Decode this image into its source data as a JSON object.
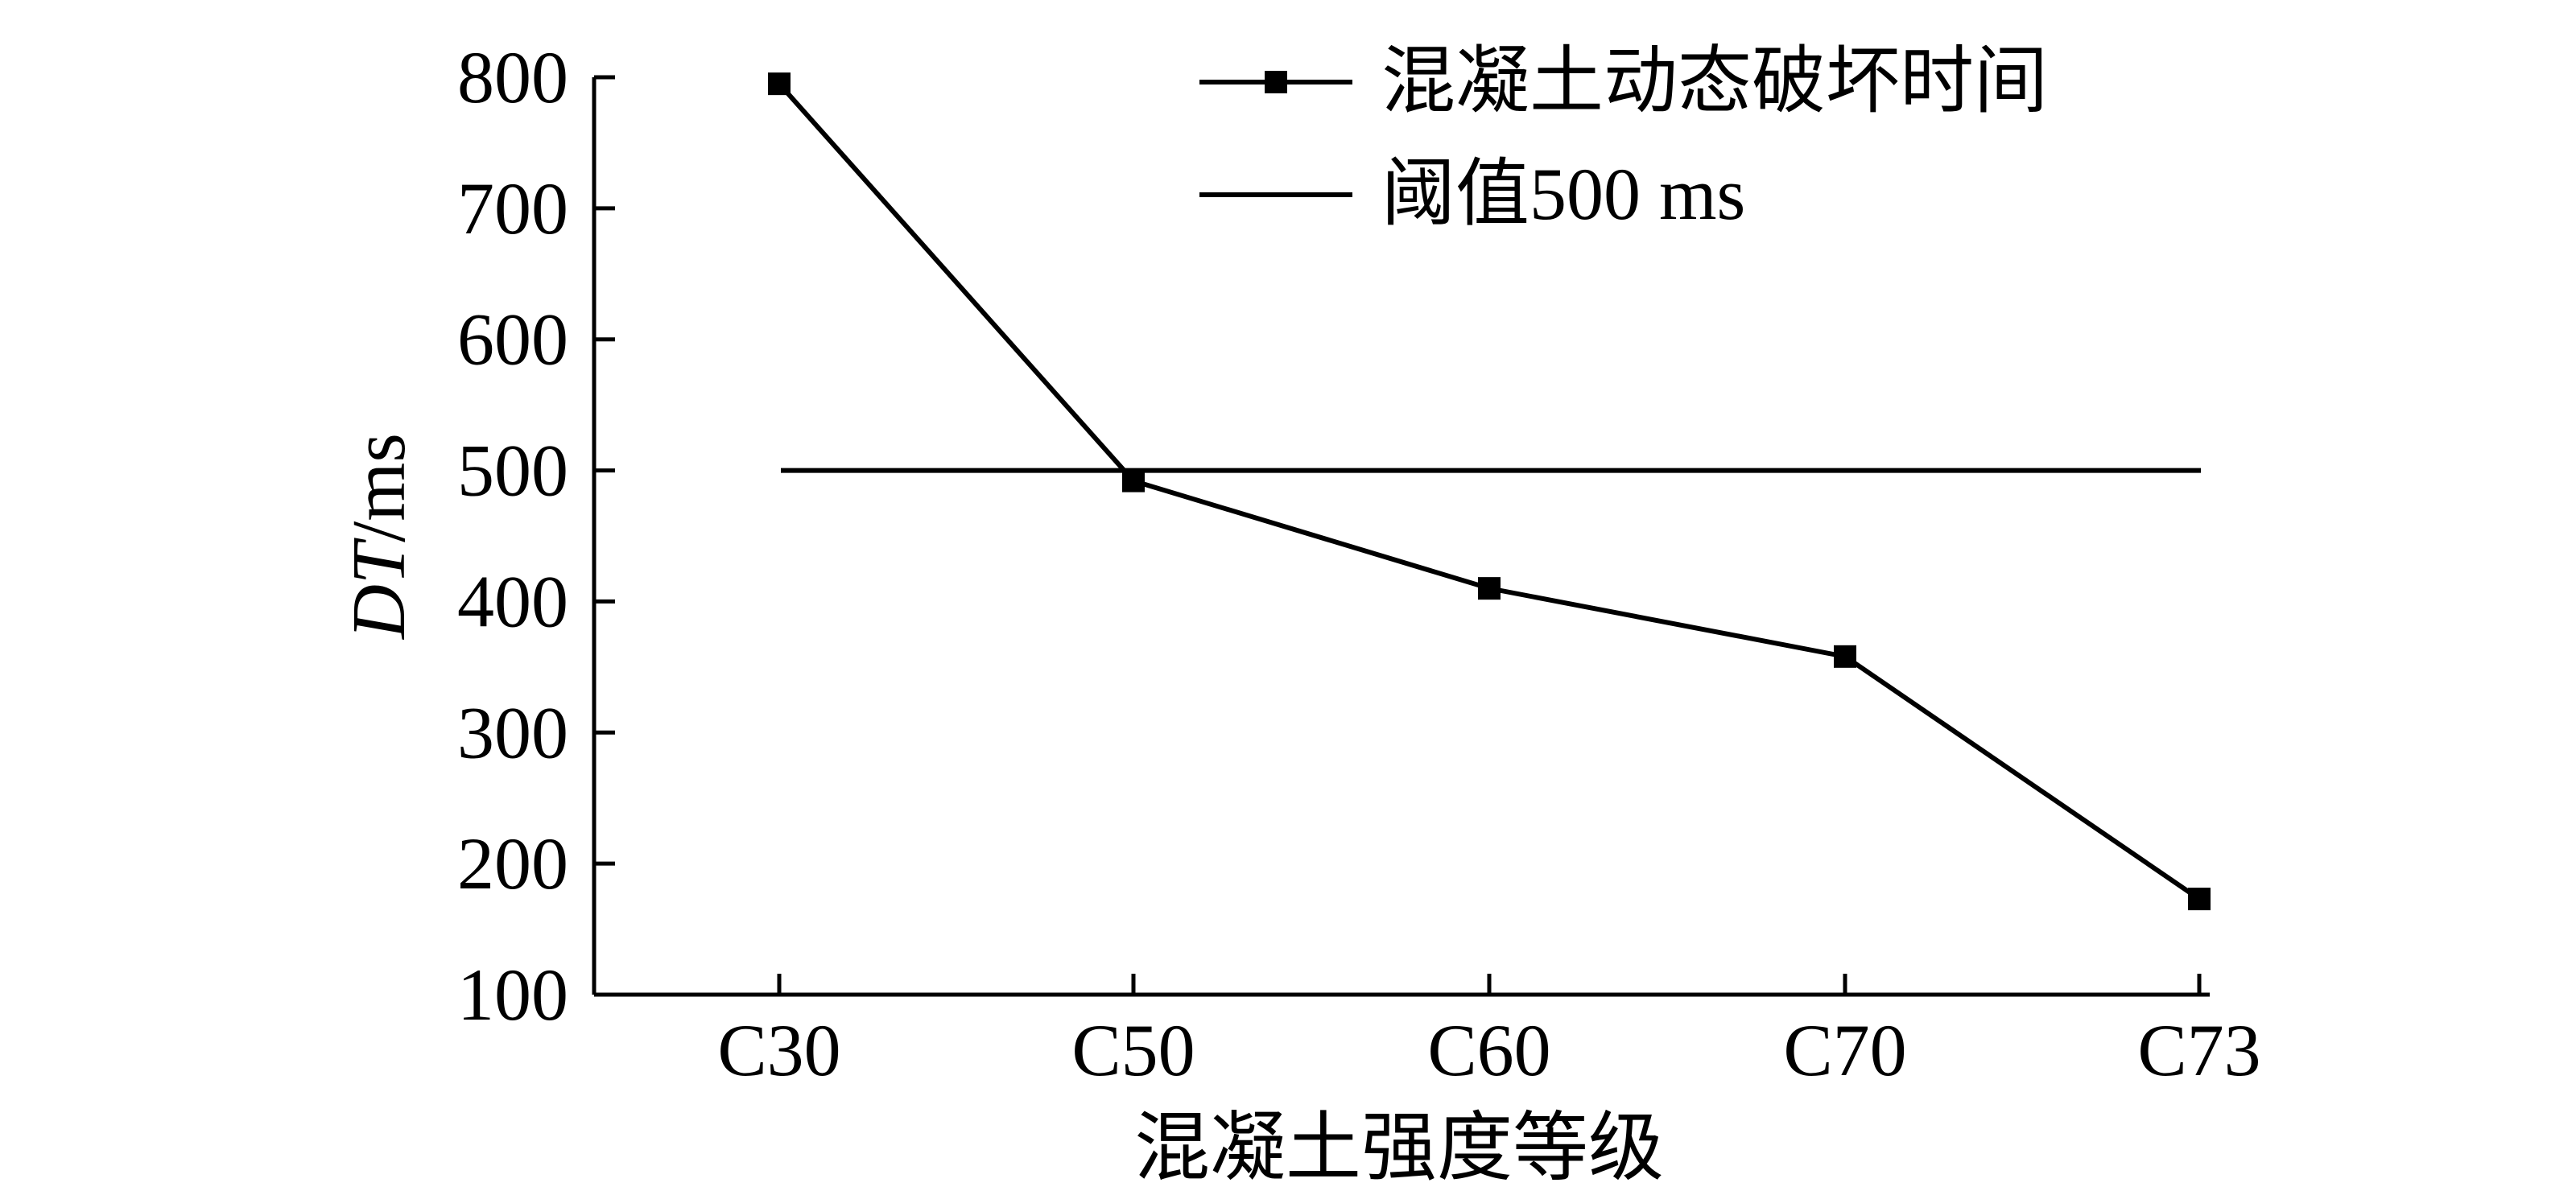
{
  "chart_data": {
    "type": "line",
    "categories": [
      "C30",
      "C50",
      "C60",
      "C70",
      "C73"
    ],
    "series": [
      {
        "name": "混凝土动态破坏时间",
        "values": [
          795,
          492,
          410,
          358,
          173
        ],
        "marker": "square",
        "color": "#000000"
      },
      {
        "name": "阈值500 ms",
        "constant": 500,
        "marker": "none",
        "color": "#000000"
      }
    ],
    "xlabel": "混凝土强度等级",
    "ylabel": {
      "italic": "DT",
      "unit": "/ms"
    },
    "ylim": [
      100,
      800
    ],
    "yticks": [
      100,
      200,
      300,
      400,
      500,
      600,
      700,
      800
    ],
    "grid": false,
    "legend_position": "top-right"
  }
}
